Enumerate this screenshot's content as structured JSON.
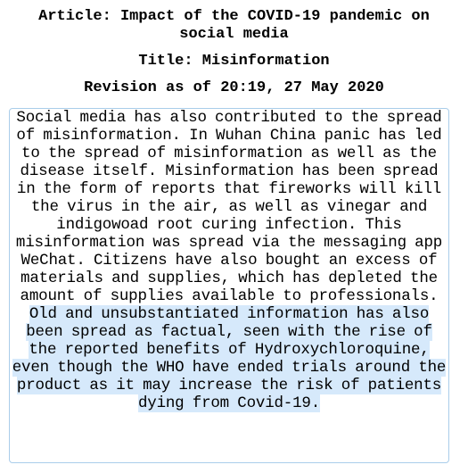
{
  "header": {
    "article_title": "Article: Impact of the COVID-19 pandemic on social media",
    "section_title": "Title: Misinformation",
    "revision": "Revision as of 20:19, 27 May 2020"
  },
  "content": {
    "plain_text": "Social media has also contributed to the spread of misinformation. In Wuhan China panic has led to the spread of misinformation as well as the disease itself. Misinformation has been spread in the form of reports that fireworks will kill the virus in the air, as well as vinegar and indigowoad root curing infection. This misinformation was spread via the messaging app WeChat. Citizens have also bought an excess of materials and supplies, which has depleted the amount of supplies available to professionals.",
    "highlighted_text": " Old and unsubstantiated information has also been spread as factual, seen with the rise of the reported benefits of Hydroxychloroquine, even though the WHO have ended trials around the product as it may increase the risk of patients dying from Covid-19.",
    "highlight_color": "#d6e9fb",
    "border_color": "#a9cdea"
  }
}
